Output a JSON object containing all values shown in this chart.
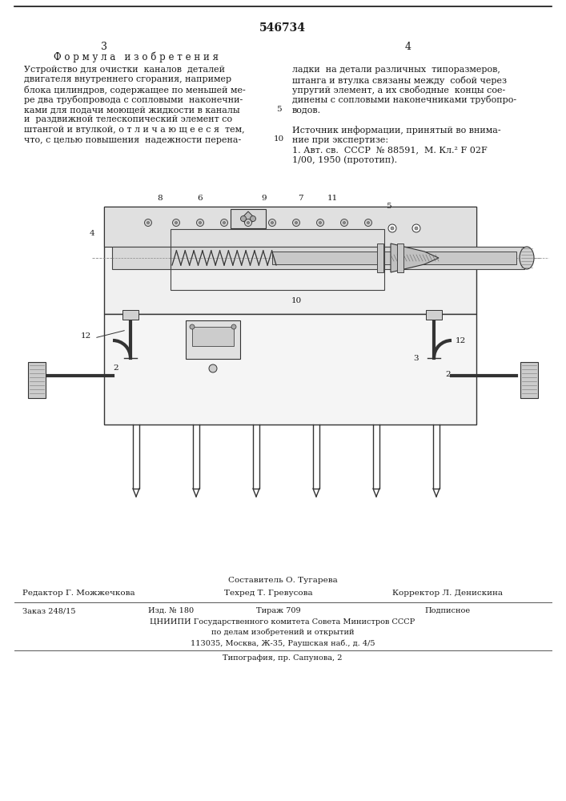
{
  "patent_number": "546734",
  "page_left": "3",
  "page_right": "4",
  "section_title": "Ф о р м у л а   и з о б р е т е н и я",
  "left_lines": [
    "Устройство для очистки  каналов  деталей",
    "двигателя внутреннего сгорания, например",
    "блока цилиндров, содержащее по меньшей ме-",
    "ре два трубопровода с сопловыми  наконечни-",
    "ками для подачи моющей жидкости в каналы",
    "и  раздвижной телескопический элемент со",
    "штангой и втулкой, о т л и ч а ю щ е е с я  тем,",
    "что, с целью повышения  надежности перена-"
  ],
  "right_lines_top": [
    "ладки  на детали различных  типоразмеров,",
    "штанга и втулка связаны между  собой через",
    "упругий элемент, а их свободные  концы сое-",
    "динены с сопловыми наконечниками трубопро-",
    "водов."
  ],
  "right_lines_bot": [
    "Источник информации, принятый во внима-",
    "ние при экспертизе:",
    "1. Авт. св.  СССР  № 88591,  М. Кл.² F 02F",
    "1/00, 1950 (прототип)."
  ],
  "footer_composer": "Составитель О. Тугарева",
  "footer_editor": "Редактор Г. Можжечкова",
  "footer_tech": "Техред Т. Гревусова",
  "footer_corrector": "Корректор Л. Денискина",
  "footer_order": "Заказ 248/15",
  "footer_izd": "Изд. № 180",
  "footer_tirazh": "Тираж 709",
  "footer_podpisnoe": "Подписное",
  "footer_org": "ЦНИИПИ Государственного комитета Совета Министров СССР",
  "footer_org2": "по делам изобретений и открытий",
  "footer_addr": "113035, Москва, Ж-35, Раушская наб., д. 4/5",
  "footer_print": "Типография, пр. Сапунова, 2",
  "bg_color": "#ffffff",
  "text_color": "#1a1a1a"
}
